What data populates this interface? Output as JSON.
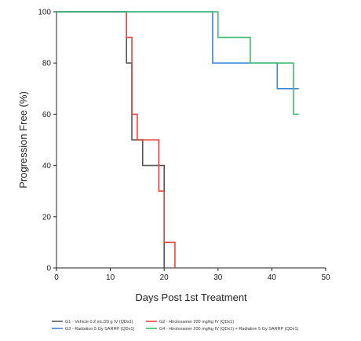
{
  "chart_data": {
    "type": "line",
    "subtype": "step",
    "xlabel": "Days Post 1st Treatment",
    "ylabel": "Progression Free (%)",
    "xlim": [
      0,
      50
    ],
    "ylim": [
      0,
      100
    ],
    "xticks": [
      0,
      10,
      20,
      30,
      40,
      50
    ],
    "yticks": [
      0,
      20,
      40,
      60,
      80,
      100
    ],
    "grid": false,
    "legend_position": "bottom",
    "series": [
      {
        "name": "G1 - Vehicle 0.2 mL/20 g IV (QDx1)",
        "color": "#555555",
        "x": [
          0,
          13,
          14,
          16,
          20
        ],
        "y": [
          100,
          80,
          50,
          40,
          0
        ]
      },
      {
        "name": "G2 - Hiroloxamer 200 mg/kg IV (QDx1)",
        "color": "#e8463c",
        "x": [
          0,
          13,
          14,
          15,
          19,
          20,
          22
        ],
        "y": [
          100,
          90,
          60,
          50,
          30,
          10,
          0
        ]
      },
      {
        "name": "G3 - Radiation 5 Gy SARRP (QDx1)",
        "color": "#3b86d6",
        "x": [
          0,
          29,
          41,
          45
        ],
        "y": [
          100,
          80,
          70,
          70
        ]
      },
      {
        "name": "G4 - Hiroloxamer 200 mg/kg IV (QDx1) + Radiation 5 Gy SARRP (QDx1)",
        "color": "#3dbb6e",
        "x": [
          0,
          30,
          36,
          44,
          45
        ],
        "y": [
          100,
          90,
          80,
          60,
          60
        ]
      }
    ]
  }
}
